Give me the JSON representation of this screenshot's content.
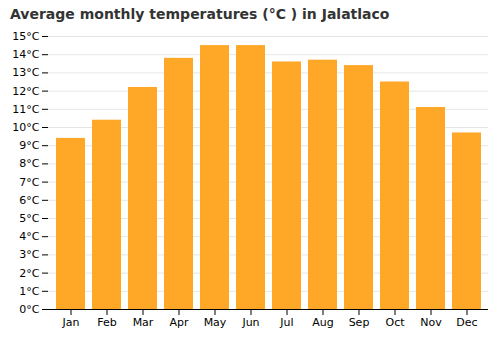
{
  "chart_data": {
    "type": "bar",
    "title": "Average monthly temperatures (°C ) in Jalatlaco",
    "categories": [
      "Jan",
      "Feb",
      "Mar",
      "Apr",
      "May",
      "Jun",
      "Jul",
      "Aug",
      "Sep",
      "Oct",
      "Nov",
      "Dec"
    ],
    "values": [
      9.4,
      10.4,
      12.2,
      13.8,
      14.5,
      14.5,
      13.6,
      13.7,
      13.4,
      12.5,
      11.1,
      9.7
    ],
    "color": "#FFA726",
    "ylim": [
      0,
      15
    ],
    "yticks": [
      {
        "value": 0,
        "label": "0°C"
      },
      {
        "value": 1,
        "label": "1°C"
      },
      {
        "value": 2,
        "label": "2°C"
      },
      {
        "value": 3,
        "label": "3°C"
      },
      {
        "value": 4,
        "label": "4°C"
      },
      {
        "value": 5,
        "label": "5°C"
      },
      {
        "value": 6,
        "label": "6°C"
      },
      {
        "value": 7,
        "label": "7°C"
      },
      {
        "value": 8,
        "label": "8°C"
      },
      {
        "value": 9,
        "label": "9°C"
      },
      {
        "value": 10,
        "label": "10°C"
      },
      {
        "value": 11,
        "label": "11°C"
      },
      {
        "value": 12,
        "label": "12°C"
      },
      {
        "value": 13,
        "label": "13°C"
      },
      {
        "value": 14,
        "label": "14°C"
      },
      {
        "value": 15,
        "label": "15°C"
      }
    ],
    "grid": true
  }
}
